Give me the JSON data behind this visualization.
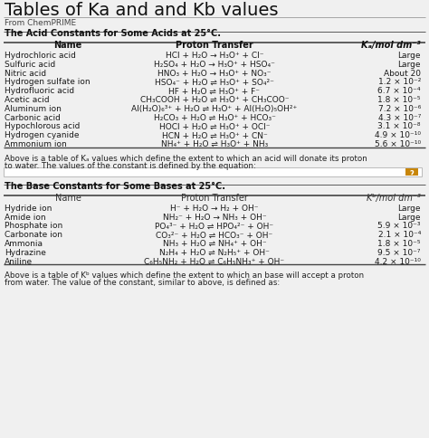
{
  "title": "Tables of Ka and and Kb values",
  "subtitle": "From ChemPRIME",
  "acid_section_title": "The Acid Constants for Some Acids at 25°C.",
  "acid_rows": [
    [
      "Hydrochloric acid",
      "HCl + H₂O → H₃O⁺ + Cl⁻",
      "Large"
    ],
    [
      "Sulfuric acid",
      "H₂SO₄ + H₂O → H₃O⁺ + HSO₄⁻",
      "Large"
    ],
    [
      "Nitric acid",
      "HNO₃ + H₂O → H₃O⁺ + NO₃⁻",
      "About 20"
    ],
    [
      "Hydrogen sulfate ion",
      "HSO₄⁻ + H₂O ⇌ H₃O⁺ + SO₄²⁻",
      "1.2 × 10⁻²"
    ],
    [
      "Hydrofluoric acid",
      "HF + H₂O ⇌ H₃O⁺ + F⁻",
      "6.7 × 10⁻⁴"
    ],
    [
      "Acetic acid",
      "CH₃COOH + H₂O ⇌ H₃O⁺ + CH₃COO⁻",
      "1.8 × 10⁻⁵"
    ],
    [
      "Aluminum ion",
      "Al(H₂O)₆³⁺ + H₂O ⇌ H₃O⁺ + Al(H₂O)₅OH²⁺",
      "7.2 × 10⁻⁶"
    ],
    [
      "Carbonic acid",
      "H₂CO₃ + H₂O ⇌ H₃O⁺ + HCO₃⁻",
      "4.3 × 10⁻⁷"
    ],
    [
      "Hypochlorous acid",
      "HOCl + H₂O ⇌ H₃O⁺ + OCl⁻",
      "3.1 × 10⁻⁸"
    ],
    [
      "Hydrogen cyanide",
      "HCN + H₂O ⇌ H₃O⁺ + CN⁻",
      "4.9 × 10⁻¹⁰"
    ],
    [
      "Ammonium ion",
      "NH₄⁺ + H₂O ⇌ H₃O⁺ + NH₃",
      "5.6 × 10⁻¹⁰"
    ]
  ],
  "acid_note1": "Above is a table of Kₐ values which define the extent to which an acid will donate its proton",
  "acid_note2": "to water. The values of the constant is defined by the equation:",
  "base_section_title": "The Base Constants for Some Bases at 25°C.",
  "base_rows": [
    [
      "Hydride ion",
      "H⁻ + H₂O → H₂ + OH⁻",
      "Large"
    ],
    [
      "Amide ion",
      "NH₂⁻ + H₂O → NH₃ + OH⁻",
      "Large"
    ],
    [
      "Phosphate ion",
      "PO₄³⁻ + H₂O ⇌ HPO₄²⁻ + OH⁻",
      "5.9 × 10⁻³"
    ],
    [
      "Carbonate ion",
      "CO₃²⁻ + H₂O ⇌ HCO₃⁻ + OH⁻",
      "2.1 × 10⁻⁴"
    ],
    [
      "Ammonia",
      "NH₃ + H₂O ⇌ NH₄⁺ + OH⁻",
      "1.8 × 10⁻⁵"
    ],
    [
      "Hydrazine",
      "N₂H₄ + H₂O ⇌ N₂H₅⁺ + OH⁻",
      "9.5 × 10⁻⁷"
    ],
    [
      "Aniline",
      "C₆H₅NH₂ + H₂O ⇌ C₆H₅NH₃⁺ + OH⁻",
      "4.2 × 10⁻¹⁰"
    ]
  ],
  "base_note1": "Above is a table of Kᵇ values which define the extent to which an base will accept a proton",
  "base_note2": "from water. The value of the constant, similar to above, is defined as:",
  "bg_color": "#f0f0f0",
  "text_color": "#1a1a1a",
  "line_color": "#333333"
}
